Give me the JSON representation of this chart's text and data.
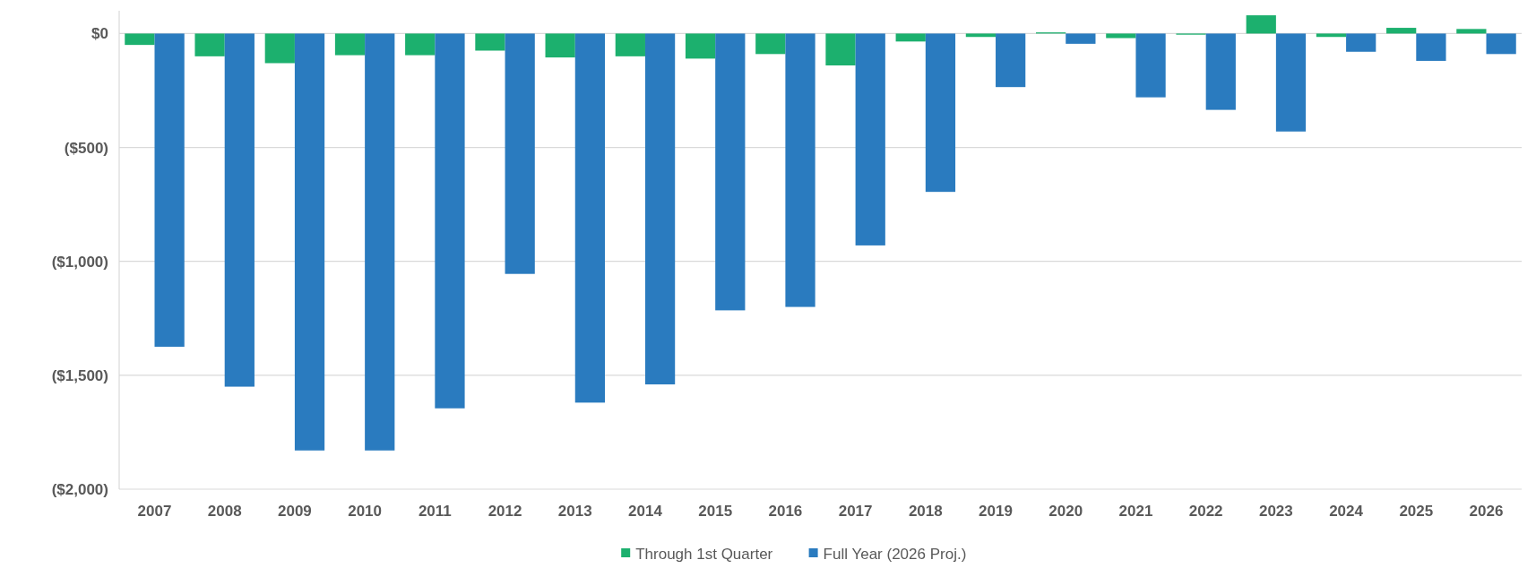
{
  "chart_data": {
    "type": "bar",
    "categories": [
      "2007",
      "2008",
      "2009",
      "2010",
      "2011",
      "2012",
      "2013",
      "2014",
      "2015",
      "2016",
      "2017",
      "2018",
      "2019",
      "2020",
      "2021",
      "2022",
      "2023",
      "2024",
      "2025",
      "2026"
    ],
    "series": [
      {
        "name": "Through 1st Quarter",
        "color": "#1cb06e",
        "values": [
          -50,
          -100,
          -130,
          -95,
          -95,
          -75,
          -105,
          -100,
          -110,
          -90,
          -140,
          -35,
          -15,
          5,
          -20,
          -5,
          80,
          -15,
          25,
          20
        ]
      },
      {
        "name": "Full Year (2026 Proj.)",
        "color": "#2a7bbf",
        "values": [
          -1375,
          -1550,
          -1830,
          -1830,
          -1645,
          -1055,
          -1620,
          -1540,
          -1215,
          -1200,
          -930,
          -695,
          -235,
          -45,
          -280,
          -335,
          -430,
          -80,
          -120,
          -90
        ]
      }
    ],
    "ylim": [
      -2000,
      100
    ],
    "yticks": [
      {
        "value": -2000,
        "label": "($2,000)"
      },
      {
        "value": -1500,
        "label": "($1,500)"
      },
      {
        "value": -1000,
        "label": "($1,000)"
      },
      {
        "value": -500,
        "label": "($500)"
      },
      {
        "value": 0,
        "label": "$0"
      }
    ],
    "grid": "y",
    "legend": "bottom"
  }
}
